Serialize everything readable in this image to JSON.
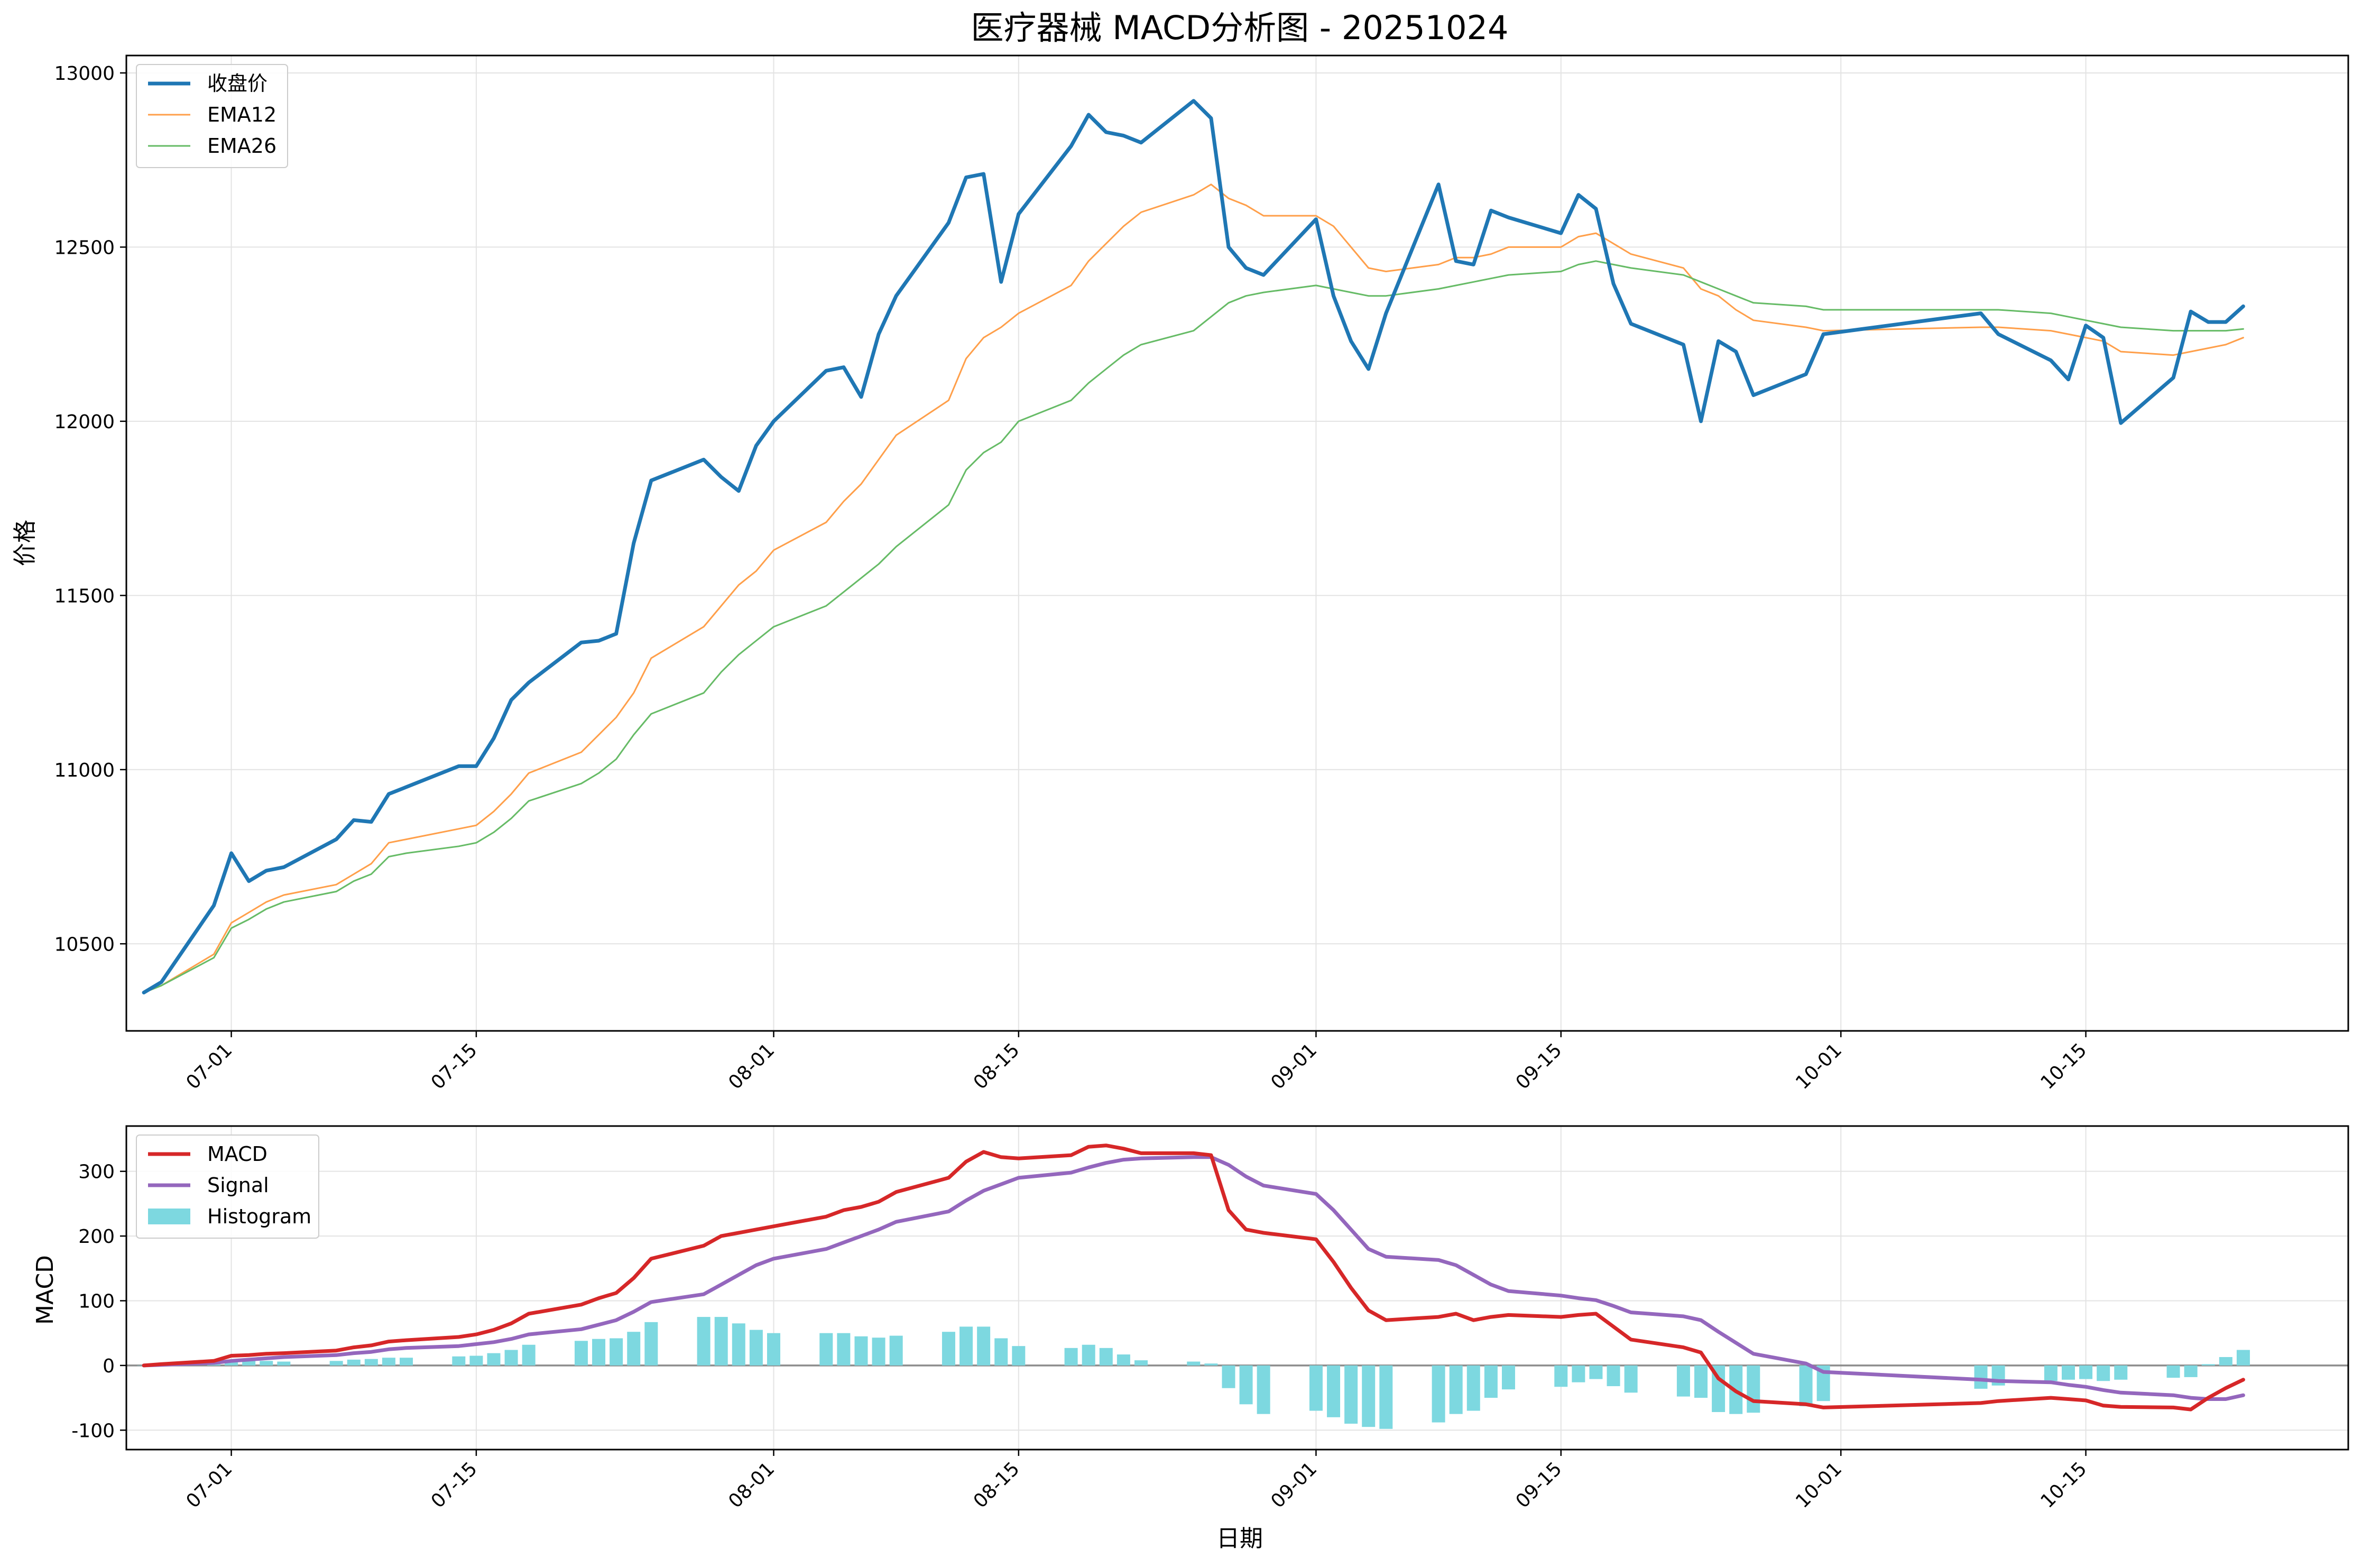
{
  "chart_data": [
    {
      "type": "line",
      "title": "医疗器械 MACD分析图 - 20251024",
      "ylabel": "价格",
      "xlabel": "",
      "ylim": [
        10250,
        13050
      ],
      "yticks": [
        10500,
        11000,
        11500,
        12000,
        12500,
        13000
      ],
      "xlim": [
        "2025-06-25",
        "2025-10-30"
      ],
      "xticks": [
        "07-01",
        "07-15",
        "08-01",
        "08-15",
        "09-01",
        "09-15",
        "10-01",
        "10-15"
      ],
      "xtick_dates": [
        "2025-07-01",
        "2025-07-15",
        "2025-08-01",
        "2025-08-15",
        "2025-09-01",
        "2025-09-15",
        "2025-10-01",
        "2025-10-15"
      ],
      "grid": true,
      "legend": "top-left",
      "x": [
        "2025-06-26",
        "2025-06-27",
        "2025-06-30",
        "2025-07-01",
        "2025-07-02",
        "2025-07-03",
        "2025-07-04",
        "2025-07-07",
        "2025-07-08",
        "2025-07-09",
        "2025-07-10",
        "2025-07-11",
        "2025-07-14",
        "2025-07-15",
        "2025-07-16",
        "2025-07-17",
        "2025-07-18",
        "2025-07-21",
        "2025-07-22",
        "2025-07-23",
        "2025-07-24",
        "2025-07-25",
        "2025-07-28",
        "2025-07-29",
        "2025-07-30",
        "2025-07-31",
        "2025-08-01",
        "2025-08-04",
        "2025-08-05",
        "2025-08-06",
        "2025-08-07",
        "2025-08-08",
        "2025-08-11",
        "2025-08-12",
        "2025-08-13",
        "2025-08-14",
        "2025-08-15",
        "2025-08-18",
        "2025-08-19",
        "2025-08-20",
        "2025-08-21",
        "2025-08-22",
        "2025-08-25",
        "2025-08-26",
        "2025-08-27",
        "2025-08-28",
        "2025-08-29",
        "2025-09-01",
        "2025-09-02",
        "2025-09-03",
        "2025-09-04",
        "2025-09-05",
        "2025-09-08",
        "2025-09-09",
        "2025-09-10",
        "2025-09-11",
        "2025-09-12",
        "2025-09-15",
        "2025-09-16",
        "2025-09-17",
        "2025-09-18",
        "2025-09-19",
        "2025-09-22",
        "2025-09-23",
        "2025-09-24",
        "2025-09-25",
        "2025-09-26",
        "2025-09-29",
        "2025-09-30",
        "2025-10-09",
        "2025-10-10",
        "2025-10-13",
        "2025-10-14",
        "2025-10-15",
        "2025-10-16",
        "2025-10-17",
        "2025-10-20",
        "2025-10-21",
        "2025-10-22",
        "2025-10-23",
        "2025-10-24"
      ],
      "series": [
        {
          "name": "收盘价",
          "color": "#1f77b4",
          "values": [
            10360,
            10390,
            10610,
            10760,
            10680,
            10710,
            10720,
            10800,
            10855,
            10850,
            10930,
            10950,
            11010,
            11010,
            11090,
            11200,
            11250,
            11365,
            11370,
            11390,
            11650,
            11830,
            11890,
            11840,
            11800,
            11930,
            12000,
            12145,
            12155,
            12070,
            12250,
            12360,
            12570,
            12700,
            12710,
            12400,
            12595,
            12790,
            12880,
            12830,
            12820,
            12800,
            12920,
            12870,
            12500,
            12440,
            12420,
            12580,
            12360,
            12230,
            12150,
            12310,
            12680,
            12460,
            12450,
            12605,
            12585,
            12540,
            12650,
            12610,
            12395,
            12280,
            12220,
            12000,
            12230,
            12200,
            12075,
            12135,
            12250,
            12310,
            12250,
            12175,
            12120,
            12275,
            12240,
            11995,
            12125,
            12315,
            12285,
            12285,
            12330
          ]
        },
        {
          "name": "EMA12",
          "color": "#ff9f4a",
          "values": [
            10360,
            10380,
            10470,
            10560,
            10590,
            10620,
            10640,
            10670,
            10700,
            10730,
            10790,
            10800,
            10830,
            10840,
            10880,
            10930,
            10990,
            11050,
            11100,
            11150,
            11220,
            11320,
            11410,
            11470,
            11530,
            11570,
            11630,
            11710,
            11770,
            11820,
            11890,
            11960,
            12060,
            12180,
            12240,
            12270,
            12310,
            12390,
            12460,
            12510,
            12560,
            12600,
            12650,
            12680,
            12640,
            12620,
            12590,
            12590,
            12560,
            12500,
            12440,
            12430,
            12450,
            12470,
            12470,
            12480,
            12500,
            12500,
            12530,
            12540,
            12510,
            12480,
            12440,
            12380,
            12360,
            12320,
            12290,
            12270,
            12260,
            12270,
            12270,
            12260,
            12250,
            12240,
            12230,
            12200,
            12190,
            12200,
            12210,
            12220,
            12240
          ]
        },
        {
          "name": "EMA26",
          "color": "#66bb66",
          "values": [
            10360,
            10380,
            10460,
            10545,
            10570,
            10600,
            10620,
            10650,
            10680,
            10700,
            10750,
            10760,
            10780,
            10790,
            10820,
            10860,
            10910,
            10960,
            10990,
            11030,
            11100,
            11160,
            11220,
            11280,
            11330,
            11370,
            11410,
            11470,
            11510,
            11550,
            11590,
            11640,
            11760,
            11860,
            11910,
            11940,
            12000,
            12060,
            12110,
            12150,
            12190,
            12220,
            12260,
            12300,
            12340,
            12360,
            12370,
            12390,
            12380,
            12370,
            12360,
            12360,
            12380,
            12390,
            12400,
            12410,
            12420,
            12430,
            12450,
            12460,
            12450,
            12440,
            12420,
            12400,
            12380,
            12360,
            12340,
            12330,
            12320,
            12320,
            12320,
            12310,
            12300,
            12290,
            12280,
            12270,
            12260,
            12260,
            12260,
            12260,
            12265
          ]
        }
      ]
    },
    {
      "type": "line",
      "title": "",
      "ylabel": "MACD",
      "xlabel": "日期",
      "ylim": [
        -130,
        370
      ],
      "yticks": [
        -100,
        0,
        100,
        200,
        300
      ],
      "xlim": [
        "2025-06-25",
        "2025-10-30"
      ],
      "xticks": [
        "07-01",
        "07-15",
        "08-01",
        "08-15",
        "09-01",
        "09-15",
        "10-01",
        "10-15"
      ],
      "xtick_dates": [
        "2025-07-01",
        "2025-07-15",
        "2025-08-01",
        "2025-08-15",
        "2025-09-01",
        "2025-09-15",
        "2025-10-01",
        "2025-10-15"
      ],
      "grid": true,
      "legend": "top-left",
      "zero_line": true,
      "x": [
        "2025-06-26",
        "2025-06-27",
        "2025-06-30",
        "2025-07-01",
        "2025-07-02",
        "2025-07-03",
        "2025-07-04",
        "2025-07-07",
        "2025-07-08",
        "2025-07-09",
        "2025-07-10",
        "2025-07-11",
        "2025-07-14",
        "2025-07-15",
        "2025-07-16",
        "2025-07-17",
        "2025-07-18",
        "2025-07-21",
        "2025-07-22",
        "2025-07-23",
        "2025-07-24",
        "2025-07-25",
        "2025-07-28",
        "2025-07-29",
        "2025-07-30",
        "2025-07-31",
        "2025-08-01",
        "2025-08-04",
        "2025-08-05",
        "2025-08-06",
        "2025-08-07",
        "2025-08-08",
        "2025-08-11",
        "2025-08-12",
        "2025-08-13",
        "2025-08-14",
        "2025-08-15",
        "2025-08-18",
        "2025-08-19",
        "2025-08-20",
        "2025-08-21",
        "2025-08-22",
        "2025-08-25",
        "2025-08-26",
        "2025-08-27",
        "2025-08-28",
        "2025-08-29",
        "2025-09-01",
        "2025-09-02",
        "2025-09-03",
        "2025-09-04",
        "2025-09-05",
        "2025-09-08",
        "2025-09-09",
        "2025-09-10",
        "2025-09-11",
        "2025-09-12",
        "2025-09-15",
        "2025-09-16",
        "2025-09-17",
        "2025-09-18",
        "2025-09-19",
        "2025-09-22",
        "2025-09-23",
        "2025-09-24",
        "2025-09-25",
        "2025-09-26",
        "2025-09-29",
        "2025-09-30",
        "2025-10-09",
        "2025-10-10",
        "2025-10-13",
        "2025-10-14",
        "2025-10-15",
        "2025-10-16",
        "2025-10-17",
        "2025-10-20",
        "2025-10-21",
        "2025-10-22",
        "2025-10-23",
        "2025-10-24"
      ],
      "series": [
        {
          "name": "MACD",
          "color": "#d62728",
          "kind": "line",
          "values": [
            0,
            2,
            7,
            15,
            16,
            18,
            19,
            23,
            28,
            31,
            37,
            39,
            44,
            48,
            55,
            65,
            80,
            94,
            104,
            112,
            135,
            165,
            185,
            200,
            205,
            210,
            215,
            230,
            240,
            245,
            253,
            268,
            290,
            315,
            330,
            322,
            320,
            325,
            338,
            340,
            335,
            328,
            328,
            325,
            240,
            210,
            205,
            195,
            160,
            120,
            85,
            70,
            75,
            80,
            70,
            75,
            78,
            75,
            78,
            80,
            60,
            40,
            28,
            20,
            -20,
            -40,
            -55,
            -60,
            -65,
            -58,
            -55,
            -50,
            -52,
            -54,
            -62,
            -64,
            -65,
            -68,
            -50,
            -35,
            -22
          ]
        },
        {
          "name": "Signal",
          "color": "#9467bd",
          "kind": "line",
          "values": [
            0,
            1,
            4,
            7,
            9,
            11,
            13,
            16,
            19,
            21,
            25,
            27,
            30,
            33,
            36,
            41,
            48,
            56,
            63,
            70,
            83,
            98,
            110,
            125,
            140,
            155,
            165,
            180,
            190,
            200,
            210,
            222,
            238,
            255,
            270,
            280,
            290,
            298,
            306,
            313,
            318,
            320,
            322,
            322,
            310,
            292,
            278,
            265,
            240,
            210,
            180,
            168,
            163,
            155,
            140,
            125,
            115,
            108,
            104,
            101,
            92,
            82,
            76,
            70,
            52,
            35,
            18,
            3,
            -10,
            -22,
            -24,
            -26,
            -30,
            -33,
            -38,
            -42,
            -46,
            -50,
            -52,
            -52,
            -46
          ]
        },
        {
          "name": "Histogram",
          "color": "#17becf",
          "kind": "bar",
          "values": [
            0,
            2,
            4,
            8,
            8,
            7,
            6,
            7,
            9,
            10,
            12,
            12,
            14,
            15,
            19,
            24,
            32,
            38,
            41,
            42,
            52,
            67,
            75,
            75,
            65,
            55,
            50,
            50,
            50,
            45,
            43,
            46,
            52,
            60,
            60,
            42,
            30,
            27,
            32,
            27,
            17,
            8,
            6,
            3,
            -35,
            -60,
            -75,
            -70,
            -80,
            -90,
            -95,
            -98,
            -88,
            -75,
            -70,
            -50,
            -37,
            -33,
            -26,
            -21,
            -32,
            -42,
            -48,
            -50,
            -72,
            -75,
            -73,
            -63,
            -55,
            -36,
            -31,
            -24,
            -22,
            -21,
            -24,
            -22,
            -19,
            -18,
            2,
            13,
            24
          ]
        }
      ]
    }
  ],
  "legend_colors": {
    "histogram_fill": "#7dd8e0"
  }
}
